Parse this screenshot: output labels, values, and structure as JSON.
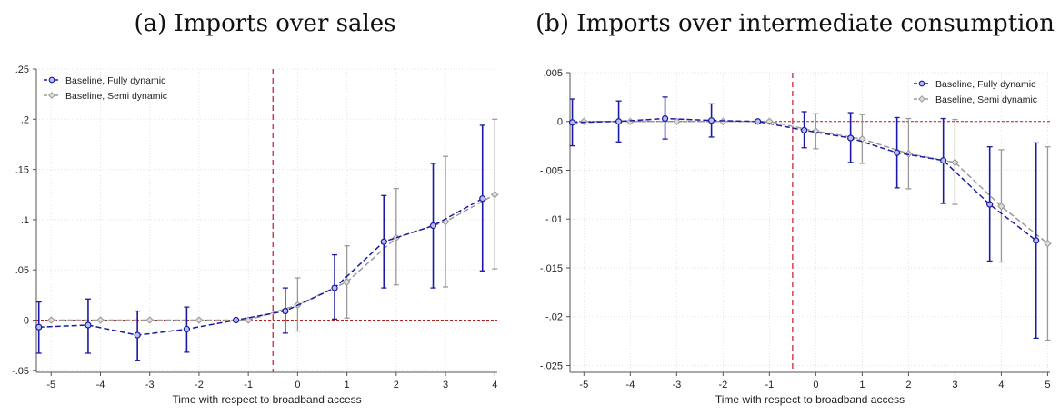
{
  "panels": {
    "a": {
      "title": "(a) Imports over sales"
    },
    "b": {
      "title": "(b) Imports over intermediate consumption"
    }
  },
  "colors": {
    "fully": "#1a1aa6",
    "semi": "#9a9a9a",
    "event_line": "#d0334e",
    "zero_line": "#b22222",
    "grid": "#e3e3e3"
  },
  "chart_data": [
    {
      "type": "line",
      "title": "(a) Imports over sales",
      "xlabel": "Time with respect to broadband access",
      "ylabel": "",
      "xlim": [
        -5.3,
        4.05
      ],
      "ylim": [
        -0.052,
        0.25
      ],
      "xticks": [
        -5,
        -4,
        -3,
        -2,
        -1,
        0,
        1,
        2,
        3,
        4
      ],
      "xtick_labels": [
        "-5",
        "-4",
        "-3",
        "-2",
        "-1",
        "0",
        "1",
        "2",
        "3",
        "4"
      ],
      "yticks": [
        -0.05,
        0,
        0.05,
        0.1,
        0.15,
        0.2,
        0.25
      ],
      "ytick_labels": [
        "-.05",
        "0",
        ".05",
        ".1",
        ".15",
        ".2",
        ".25"
      ],
      "event_line_x": -0.5,
      "zero_line": true,
      "grid": true,
      "legend_position": "top-left",
      "x_extends_to": 4.05,
      "series": [
        {
          "name": "Baseline, Fully dynamic",
          "style": "fully",
          "x": [
            -5.25,
            -4.25,
            -3.25,
            -2.25,
            -1.25,
            -0.25,
            0.75,
            1.75,
            2.75,
            3.75
          ],
          "y": [
            -0.007,
            -0.005,
            -0.015,
            -0.009,
            0.0,
            0.009,
            0.032,
            0.078,
            0.094,
            0.121
          ],
          "lo": [
            -0.033,
            -0.033,
            -0.04,
            -0.032,
            null,
            -0.013,
            0.001,
            0.032,
            0.032,
            0.049
          ],
          "hi": [
            0.018,
            0.021,
            0.009,
            0.013,
            null,
            0.032,
            0.065,
            0.124,
            0.156,
            0.194
          ]
        },
        {
          "name": "Baseline, Semi dynamic",
          "style": "semi",
          "x": [
            -5.0,
            -4.0,
            -3.0,
            -2.0,
            -1.0,
            0.0,
            1.0,
            2.0,
            3.0,
            4.0
          ],
          "y": [
            0.0,
            0.0,
            0.0,
            0.0,
            0.0,
            0.015,
            0.038,
            0.082,
            0.098,
            0.125
          ],
          "lo": [
            null,
            null,
            null,
            null,
            null,
            -0.011,
            0.002,
            0.035,
            0.033,
            0.051
          ],
          "hi": [
            null,
            null,
            null,
            null,
            null,
            0.042,
            0.074,
            0.131,
            0.163,
            0.2
          ],
          "end_y": 0.128
        }
      ]
    },
    {
      "type": "line",
      "title": "(b) Imports over intermediate consumption",
      "xlabel": "Time with respect to broadband access",
      "ylabel": "",
      "xlim": [
        -5.3,
        5.05
      ],
      "ylim": [
        -0.0257,
        0.005
      ],
      "xticks": [
        -5,
        -4,
        -3,
        -2,
        -1,
        0,
        1,
        2,
        3,
        4,
        5
      ],
      "xtick_labels": [
        "-5",
        "-4",
        "-3",
        "-2",
        "-1",
        "0",
        "1",
        "2",
        "3",
        "4",
        "5"
      ],
      "yticks": [
        -0.025,
        -0.02,
        -0.015,
        -0.01,
        -0.005,
        0,
        0.005
      ],
      "ytick_labels": [
        "-.025",
        "-.02",
        "-.015",
        "-.01",
        "-.005",
        "0",
        ".005"
      ],
      "event_line_x": -0.5,
      "zero_line": true,
      "grid": true,
      "legend_position": "top-right",
      "series": [
        {
          "name": "Baseline, Fully dynamic",
          "style": "fully",
          "x": [
            -5.25,
            -4.25,
            -3.25,
            -2.25,
            -1.25,
            -0.25,
            0.75,
            1.75,
            2.75,
            3.75,
            4.75
          ],
          "y": [
            -0.0001,
            0.0,
            0.0003,
            0.0001,
            0.0,
            -0.0009,
            -0.0017,
            -0.0032,
            -0.004,
            -0.0085,
            -0.0122
          ],
          "lo": [
            -0.0025,
            -0.0021,
            -0.0018,
            -0.0016,
            null,
            -0.0027,
            -0.0042,
            -0.0068,
            -0.0084,
            -0.0143,
            -0.0222
          ],
          "hi": [
            0.0023,
            0.0021,
            0.0025,
            0.0018,
            null,
            0.001,
            0.0009,
            0.0004,
            0.0003,
            -0.0026,
            -0.0022
          ]
        },
        {
          "name": "Baseline, Semi dynamic",
          "style": "semi",
          "x": [
            -5.0,
            -4.0,
            -3.0,
            -2.0,
            -1.0,
            0.0,
            1.0,
            2.0,
            3.0,
            4.0,
            5.0
          ],
          "y": [
            0.0,
            0.0,
            0.0,
            0.0,
            0.0,
            -0.001,
            -0.0018,
            -0.0033,
            -0.0042,
            -0.0087,
            -0.0125
          ],
          "lo": [
            null,
            null,
            null,
            null,
            null,
            -0.0028,
            -0.0043,
            -0.0069,
            -0.0085,
            -0.0144,
            -0.0224
          ],
          "hi": [
            null,
            null,
            null,
            null,
            null,
            0.0008,
            0.0007,
            0.0003,
            0.0002,
            -0.0029,
            -0.0026
          ]
        }
      ]
    }
  ]
}
